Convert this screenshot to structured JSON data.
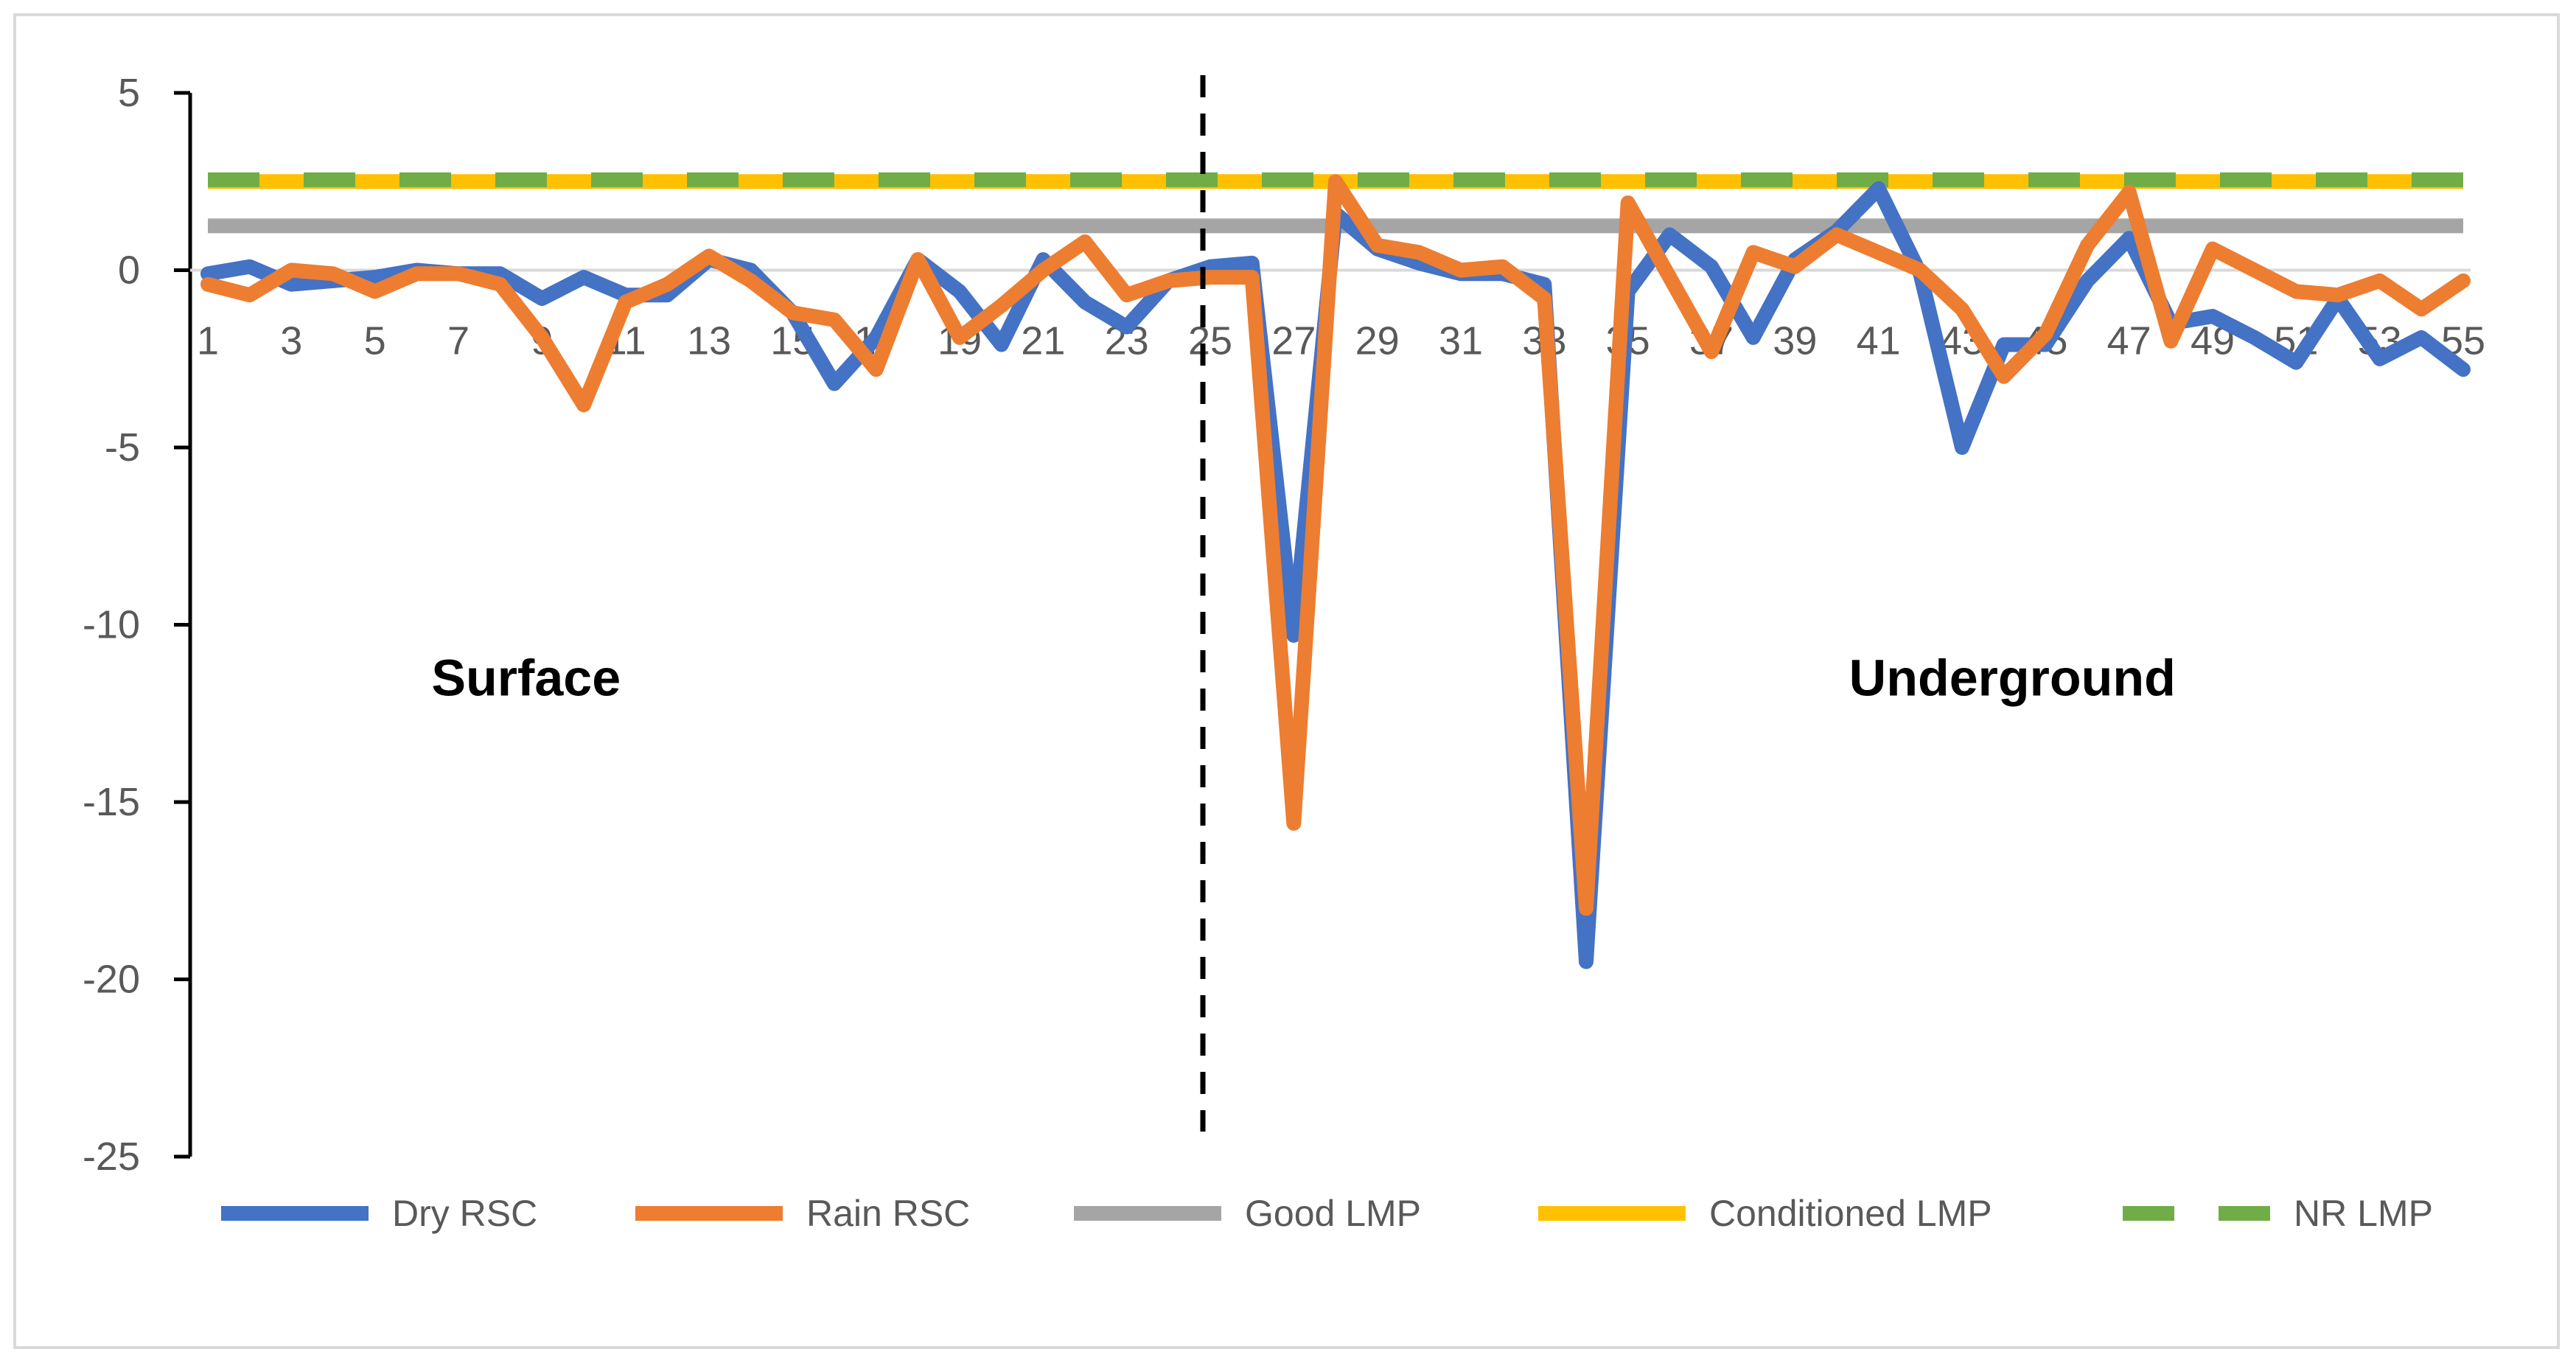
{
  "chart_data": {
    "type": "line",
    "title": "",
    "xlabel": "",
    "ylabel": "",
    "x": [
      1,
      2,
      3,
      4,
      5,
      6,
      7,
      8,
      9,
      10,
      11,
      12,
      13,
      14,
      15,
      16,
      17,
      18,
      19,
      20,
      21,
      22,
      23,
      24,
      25,
      26,
      27,
      28,
      29,
      30,
      31,
      32,
      33,
      34,
      35,
      36,
      37,
      38,
      39,
      40,
      41,
      42,
      43,
      44,
      45,
      46,
      47,
      48,
      49,
      50,
      51,
      52,
      53,
      54,
      55
    ],
    "x_tick_labels": [
      "1",
      "3",
      "5",
      "7",
      "9",
      "11",
      "13",
      "15",
      "17",
      "19",
      "21",
      "23",
      "25",
      "27",
      "29",
      "31",
      "33",
      "35",
      "37",
      "39",
      "41",
      "43",
      "45",
      "47",
      "49",
      "51",
      "53",
      "55"
    ],
    "ylim": [
      -25,
      5
    ],
    "y_ticks": [
      5,
      0,
      -5,
      -10,
      -15,
      -20,
      -25
    ],
    "series": [
      {
        "name": "Dry RSC",
        "color": "#4472c4",
        "style": "solid",
        "values": [
          -0.1,
          0.1,
          -0.4,
          -0.3,
          -0.2,
          0.0,
          -0.1,
          -0.1,
          -0.8,
          -0.2,
          -0.7,
          -0.7,
          0.3,
          0.0,
          -1.2,
          -3.2,
          -1.9,
          0.3,
          -0.6,
          -2.1,
          0.3,
          -0.9,
          -1.6,
          -0.3,
          0.1,
          0.2,
          -10.3,
          1.6,
          0.6,
          0.2,
          -0.1,
          -0.1,
          -0.4,
          -19.5,
          -0.6,
          1.0,
          0.1,
          -1.9,
          0.3,
          1.1,
          2.3,
          -0.1,
          -5.0,
          -2.1,
          -2.1,
          -0.3,
          0.9,
          -1.5,
          -1.3,
          -1.9,
          -2.6,
          -0.8,
          -2.5,
          -1.9,
          -2.8
        ]
      },
      {
        "name": "Rain RSC",
        "color": "#ed7d31",
        "style": "solid",
        "values": [
          -0.4,
          -0.7,
          0.0,
          -0.1,
          -0.6,
          -0.1,
          -0.1,
          -0.4,
          -1.9,
          -3.8,
          -0.9,
          -0.4,
          0.4,
          -0.3,
          -1.2,
          -1.4,
          -2.8,
          0.3,
          -1.9,
          -1.0,
          0.0,
          0.8,
          -0.7,
          -0.3,
          -0.2,
          -0.2,
          -15.6,
          2.5,
          0.7,
          0.5,
          0.0,
          0.1,
          -0.8,
          -18.0,
          1.9,
          -0.2,
          -2.3,
          0.5,
          0.1,
          1.0,
          0.5,
          0.0,
          -1.1,
          -3.0,
          -1.8,
          0.7,
          2.2,
          -2.0,
          0.6,
          0.0,
          -0.6,
          -0.7,
          -0.3,
          -1.1,
          -0.3
        ]
      },
      {
        "name": "Good LMP",
        "color": "#a5a5a5",
        "style": "solid",
        "constant": 1.25
      },
      {
        "name": "Conditioned LMP",
        "color": "#ffc000",
        "style": "solid",
        "constant": 2.5
      },
      {
        "name": "NR LMP",
        "color": "#70ad47",
        "style": "dashed",
        "constant": 2.55
      }
    ],
    "divider_at_x": 25,
    "annotations": [
      {
        "text": "Surface",
        "at_x": 9,
        "at_y": -11.5
      },
      {
        "text": "Underground",
        "at_x": 44,
        "at_y": -11.5
      }
    ],
    "legend_position": "bottom"
  }
}
